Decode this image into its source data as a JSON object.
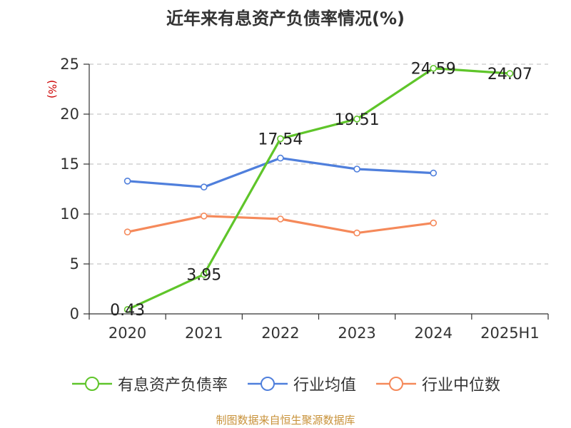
{
  "title": "近年来有息资产负债率情况(%)",
  "source": "制图数据来自恒生聚源数据库",
  "chart_data": {
    "type": "line",
    "title": "近年来有息资产负债率情况(%)",
    "xlabel": "",
    "ylabel": "(%)",
    "categories": [
      "2020",
      "2021",
      "2022",
      "2023",
      "2024",
      "2025H1"
    ],
    "ylim": [
      0,
      25
    ],
    "yticks": [
      0,
      5,
      10,
      15,
      20,
      25
    ],
    "grid": true,
    "legend_position": "bottom",
    "series": [
      {
        "name": "有息资产负债率",
        "color": "#5fc52a",
        "show_labels": true,
        "values": [
          0.43,
          3.95,
          17.54,
          19.51,
          24.59,
          24.07
        ]
      },
      {
        "name": "行业均值",
        "color": "#4f7fdc",
        "show_labels": false,
        "values": [
          13.3,
          12.7,
          15.6,
          14.5,
          14.1,
          null
        ]
      },
      {
        "name": "行业中位数",
        "color": "#f5895a",
        "show_labels": false,
        "values": [
          8.2,
          9.8,
          9.5,
          8.1,
          9.1,
          null
        ]
      }
    ]
  }
}
